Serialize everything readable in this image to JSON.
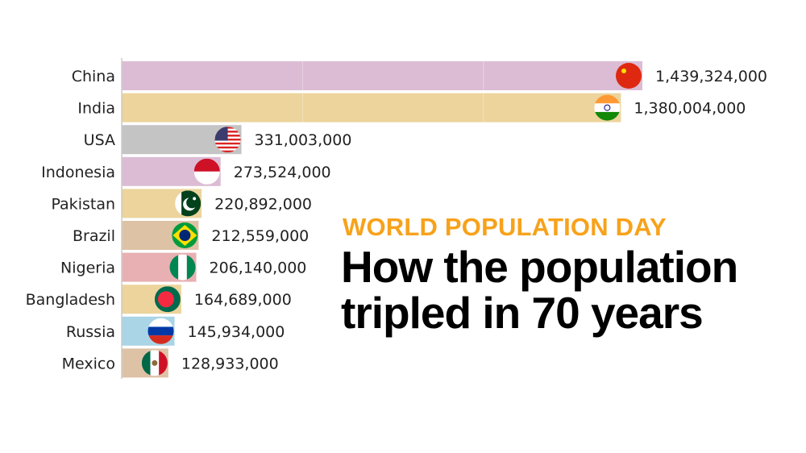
{
  "kicker": "WORLD POPULATION DAY",
  "headline": [
    "How the population",
    "tripled in 70 years"
  ],
  "chart_data": {
    "type": "bar",
    "orientation": "horizontal",
    "categories": [
      "China",
      "India",
      "USA",
      "Indonesia",
      "Pakistan",
      "Brazil",
      "Nigeria",
      "Bangladesh",
      "Russia",
      "Mexico"
    ],
    "values": [
      1439324000,
      1380004000,
      331003000,
      273524000,
      220892000,
      212559000,
      206140000,
      164689000,
      145934000,
      128933000
    ],
    "value_labels": [
      "1,439,324,000",
      "1,380,004,000",
      "331,003,000",
      "273,524,000",
      "220,892,000",
      "212,559,000",
      "206,140,000",
      "164,689,000",
      "145,934,000",
      "128,933,000"
    ],
    "colors": [
      "#dcbcd4",
      "#ecd49c",
      "#c4c4c4",
      "#dcbcd4",
      "#ecd49c",
      "#dec2a6",
      "#e8b0b2",
      "#ecd49c",
      "#a9d5e6",
      "#dec2a6"
    ],
    "flags": [
      "china-flag",
      "india-flag",
      "usa-flag",
      "indonesia-flag",
      "pakistan-flag",
      "brazil-flag",
      "nigeria-flag",
      "bangladesh-flag",
      "russia-flag",
      "mexico-flag"
    ],
    "xlim": [
      0,
      1439324000
    ],
    "grid": true,
    "gridlines": [
      500000000,
      1000000000
    ]
  }
}
